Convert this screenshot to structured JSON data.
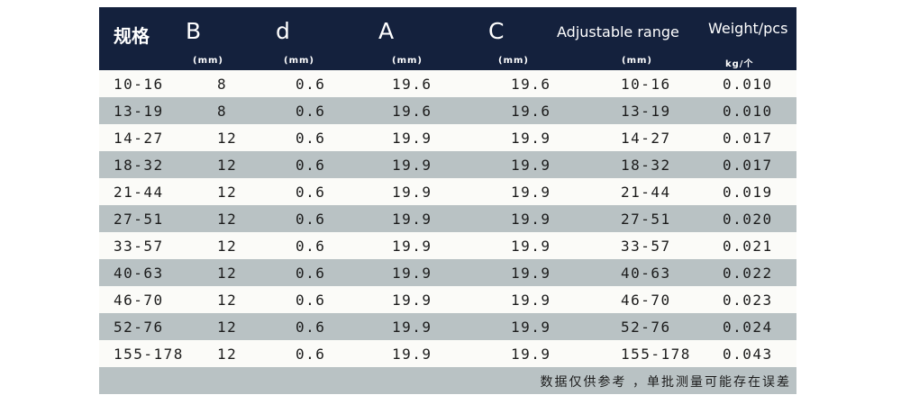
{
  "header": {
    "cols": [
      "规格",
      "B",
      "d",
      "A",
      "C",
      "Adjustable range",
      "Weight/pcs"
    ],
    "units": [
      "(mm)",
      "(mm)",
      "(mm)",
      "(mm)",
      "(mm)",
      "kg/个"
    ]
  },
  "rows": [
    [
      "10-16",
      "8",
      "0.6",
      "19.6",
      "19.6",
      "10-16",
      "0.010"
    ],
    [
      "13-19",
      "8",
      "0.6",
      "19.6",
      "19.6",
      "13-19",
      "0.010"
    ],
    [
      "14-27",
      "12",
      "0.6",
      "19.9",
      "19.9",
      "14-27",
      "0.017"
    ],
    [
      "18-32",
      "12",
      "0.6",
      "19.9",
      "19.9",
      "18-32",
      "0.017"
    ],
    [
      "21-44",
      "12",
      "0.6",
      "19.9",
      "19.9",
      "21-44",
      "0.019"
    ],
    [
      "27-51",
      "12",
      "0.6",
      "19.9",
      "19.9",
      "27-51",
      "0.020"
    ],
    [
      "33-57",
      "12",
      "0.6",
      "19.9",
      "19.9",
      "33-57",
      "0.021"
    ],
    [
      "40-63",
      "12",
      "0.6",
      "19.9",
      "19.9",
      "40-63",
      "0.022"
    ],
    [
      "46-70",
      "12",
      "0.6",
      "19.9",
      "19.9",
      "46-70",
      "0.023"
    ],
    [
      "52-76",
      "12",
      "0.6",
      "19.9",
      "19.9",
      "52-76",
      "0.024"
    ],
    [
      "155-178",
      "12",
      "0.6",
      "19.9",
      "19.9",
      "155-178",
      "0.043"
    ]
  ],
  "footer": {
    "note": "数据仅供参考 ，单批测量可能存在误差"
  }
}
